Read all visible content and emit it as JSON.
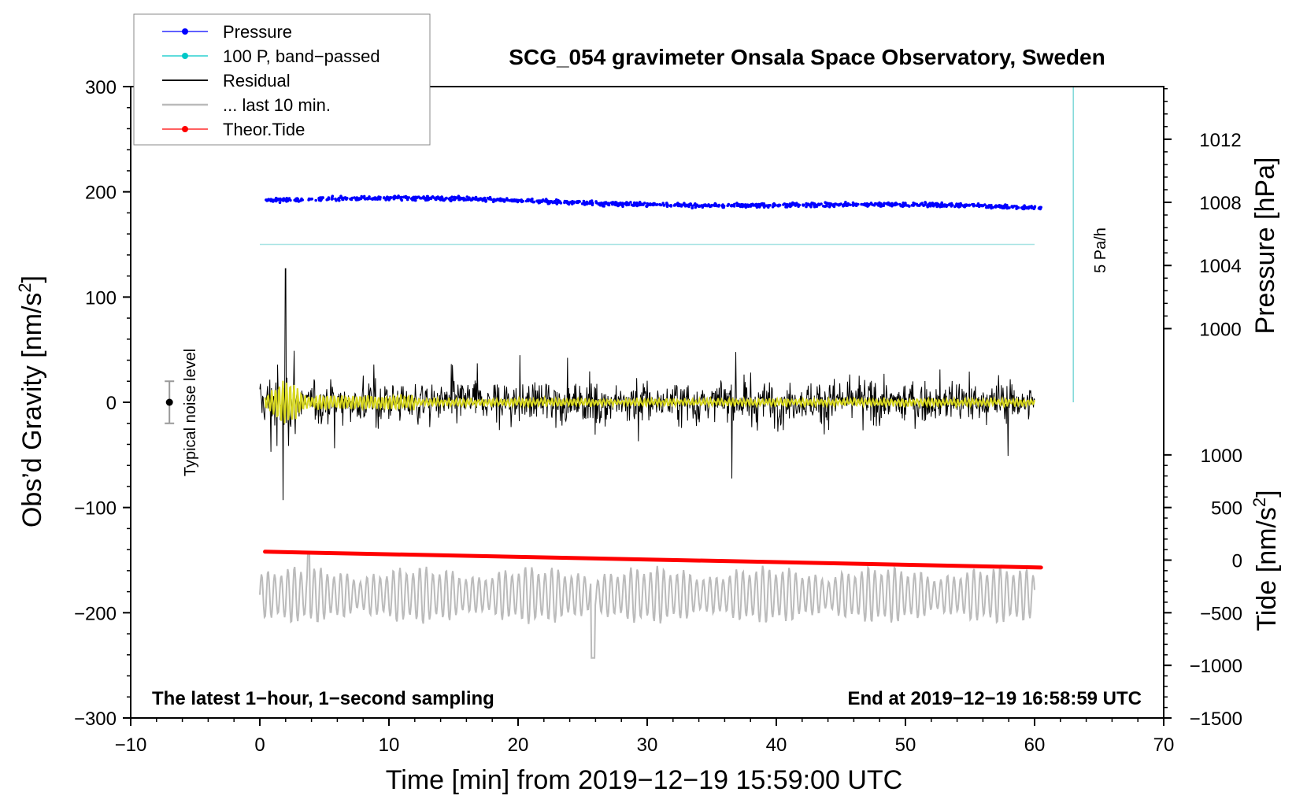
{
  "chart_data": {
    "type": "line",
    "title": "SCG_054 gravimeter Onsala Space Observatory, Sweden",
    "xlabel": "Time [min] from 2019−12−19 15:59:00 UTC",
    "ylabel_left": "Obs’d Gravity [nm/s",
    "ylabel_left_sup": "2",
    "ylabel_left_end": "]",
    "ylabel_right_pressure": "Pressure [hPa]",
    "ylabel_right_tide": "Tide [nm/s",
    "ylabel_right_tide_sup": "2",
    "ylabel_right_tide_end": "]",
    "xlim": [
      -10,
      70
    ],
    "ylim": [
      -300,
      300
    ],
    "x_ticks": [
      "−10",
      "0",
      "10",
      "20",
      "30",
      "40",
      "50",
      "60",
      "70"
    ],
    "y_ticks": [
      "−300",
      "−200",
      "−100",
      "0",
      "100",
      "200",
      "300"
    ],
    "pressure_ticks": [
      "1000",
      "1004",
      "1008",
      "1012"
    ],
    "tide_ticks": [
      "−1500",
      "−1000",
      "−500",
      "0",
      "500",
      "1000"
    ],
    "footer_left": "The latest 1−hour, 1−second sampling",
    "footer_right": "End at 2019−12−19 16:58:59 UTC",
    "noise_label": "Typical noise level",
    "rate_label": "5 Pa/h",
    "legend": [
      {
        "name": "Pressure",
        "color": "#0000ff",
        "marker": true
      },
      {
        "name": "100 P, band−passed",
        "color": "#00c8c8",
        "marker": true
      },
      {
        "name": "Residual",
        "color": "#000000",
        "marker": false
      },
      {
        "name": "... last 10 min.",
        "color": "#bbbbbb",
        "marker": false
      },
      {
        "name": "Theor.Tide",
        "color": "#ff0000",
        "marker": true
      }
    ],
    "series": [
      {
        "name": "Pressure",
        "unit": "hPa",
        "x_range": [
          0.4,
          60.5
        ],
        "start_hpa": 1008.7,
        "end_hpa": 1008.2,
        "mapped_gravity_start": 192,
        "mapped_gravity_end": 184,
        "color": "#0000ff"
      },
      {
        "name": "100 P, band−passed",
        "x_range": [
          0,
          60
        ],
        "value": 150,
        "color": "#a8e4e4"
      },
      {
        "name": "Residual",
        "x_range": [
          0,
          60
        ],
        "typical_amplitude": 35,
        "peak_max": 127,
        "peak_min": -93,
        "color": "#000000"
      },
      {
        "name": "Band-passed residual",
        "x_range": [
          0.4,
          60
        ],
        "value_near": 0,
        "color": "#d8d820"
      },
      {
        "name": "... last 10 min.",
        "x_range": [
          0,
          60
        ],
        "center": -183,
        "typical_amplitude": 28,
        "peak_max": -142,
        "peak_min": -243,
        "color": "#bbbbbb"
      },
      {
        "name": "Theor.Tide",
        "unit": "nm/s2",
        "x_range": [
          0.4,
          60.5
        ],
        "start_value": 70,
        "end_value": -80,
        "mapped_gravity_start": -142,
        "mapped_gravity_end": -157,
        "color": "#ff0000"
      }
    ],
    "rate_line": {
      "x": 63,
      "y_from": 0,
      "y_to": 300,
      "color": "#7fd8d8"
    },
    "noise_bar": {
      "x": -7,
      "center": 0,
      "low": -20,
      "high": 20
    }
  }
}
